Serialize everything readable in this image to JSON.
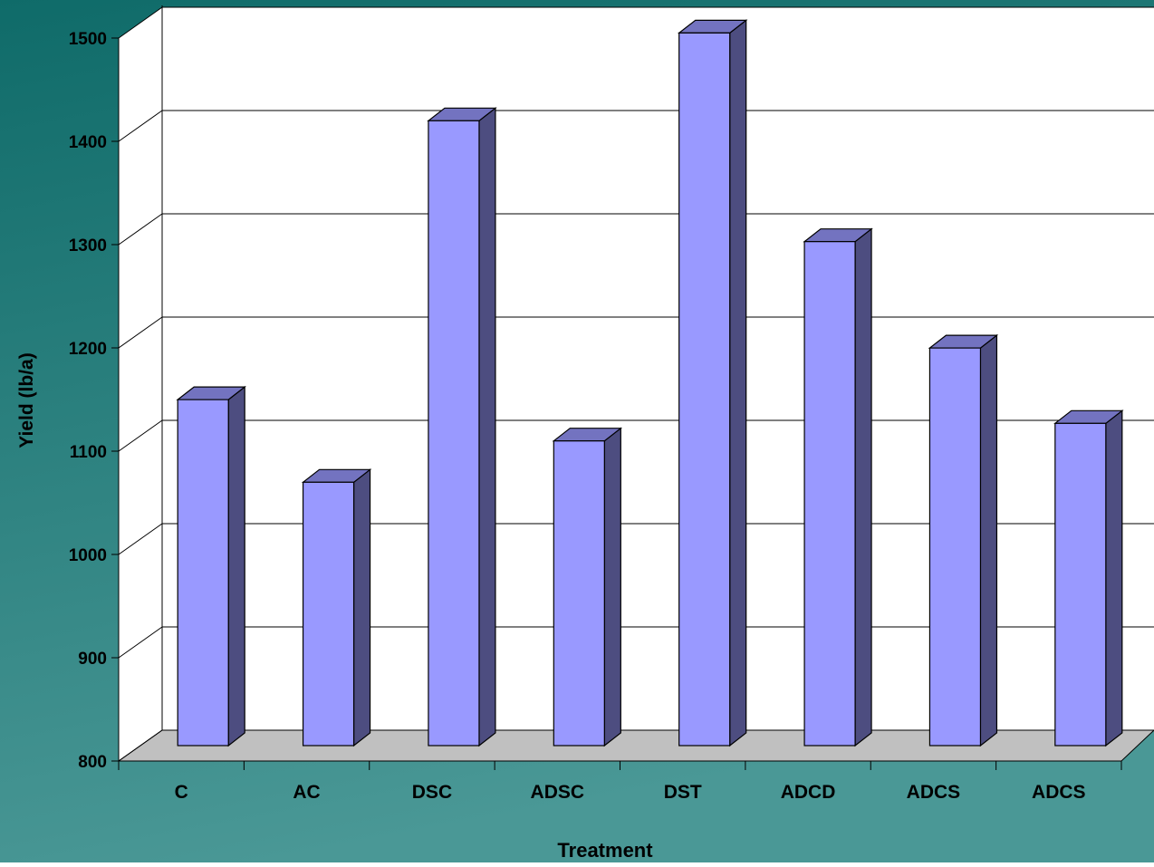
{
  "chart_data": {
    "type": "bar",
    "categories": [
      "C",
      "AC",
      "DSC",
      "ADSC",
      "DST",
      "ADCD",
      "ADCS",
      "ADCS"
    ],
    "values": [
      1135,
      1055,
      1405,
      1095,
      1490,
      1288,
      1185,
      1112
    ],
    "title": "",
    "xlabel": "Treatment",
    "ylabel": "Yield (lb/a)",
    "ylim": [
      800,
      1500
    ],
    "yticks": [
      800,
      900,
      1000,
      1100,
      1200,
      1300,
      1400,
      1500
    ],
    "grid": true,
    "three_d": true,
    "colors": {
      "bar_front": "#9999ff",
      "bar_side": "#4d4d80",
      "bar_top": "#7373c0",
      "floor": "#c0c0c0",
      "plot_back": "#ffffff",
      "background_top": "#0f6b69",
      "background_bottom": "#4a9896"
    }
  }
}
